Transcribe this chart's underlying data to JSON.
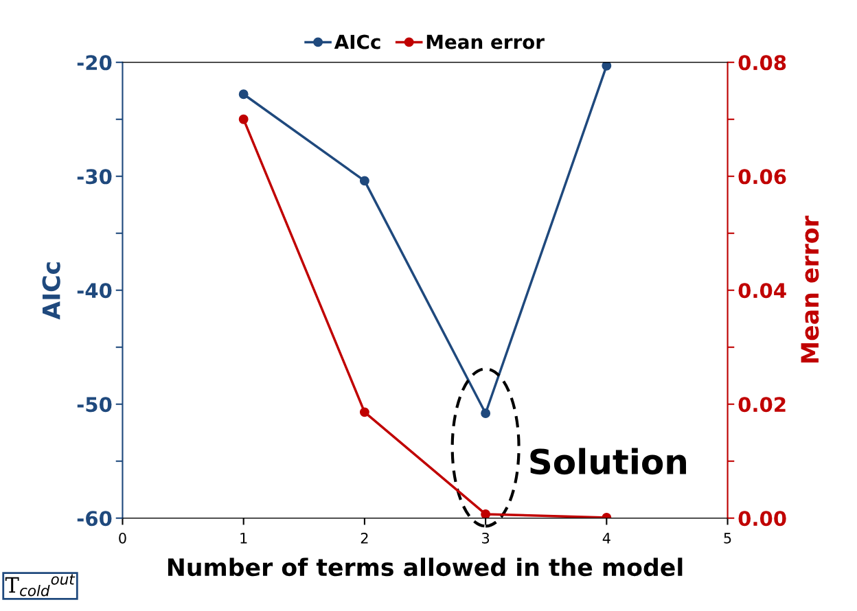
{
  "chart_data": {
    "type": "line",
    "xlabel": "Number of terms allowed in the model",
    "ylabel": "AICc",
    "y2label": "Mean error",
    "x": [
      1,
      2,
      3,
      4
    ],
    "series": [
      {
        "name": "AICc",
        "color": "#1f497d",
        "values": [
          -22.8,
          -30.4,
          -50.8,
          -20.3
        ]
      },
      {
        "name": "Mean error",
        "color": "#c00000",
        "values": [
          0.07,
          0.0186,
          0.0007,
          0.0001
        ],
        "axis": "y2"
      }
    ],
    "xlim": [
      0,
      5
    ],
    "xticks": [
      0,
      1,
      2,
      3,
      4,
      5
    ],
    "ylim": [
      -60,
      -20
    ],
    "yticks": [
      -60,
      {
        "value": -55,
        "label": null
      },
      -50,
      {
        "value": -45,
        "label": null
      },
      -40,
      {
        "value": -35,
        "label": null
      },
      -30,
      {
        "value": -25,
        "label": null
      },
      -20
    ],
    "y2lim": [
      0,
      0.08
    ],
    "y2ticks": [
      {
        "value": 0,
        "label": "0.00"
      },
      {
        "value": 0.01,
        "label": null
      },
      {
        "value": 0.02,
        "label": "0.02"
      },
      {
        "value": 0.03,
        "label": null
      },
      {
        "value": 0.04,
        "label": "0.04"
      },
      {
        "value": 0.05,
        "label": null
      },
      {
        "value": 0.06,
        "label": "0.06"
      },
      {
        "value": 0.07,
        "label": null
      },
      {
        "value": 0.08,
        "label": "0.08"
      }
    ],
    "marker": "circle",
    "line_style": "solid",
    "grid": false,
    "legend": "top",
    "annotations": [
      {
        "text": "Solution",
        "x": 3,
        "y": -50.8
      },
      "T$_{cold}$$^{out}$"
    ]
  }
}
